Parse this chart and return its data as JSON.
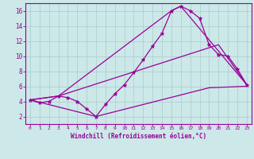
{
  "xlabel": "Windchill (Refroidissement éolien,°C)",
  "background_color": "#cce8e8",
  "grid_color": "#aacccc",
  "line_color": "#990099",
  "xlim": [
    -0.5,
    23.5
  ],
  "ylim": [
    1.0,
    17.0
  ],
  "yticks": [
    2,
    4,
    6,
    8,
    10,
    12,
    14,
    16
  ],
  "xticks": [
    0,
    1,
    2,
    3,
    4,
    5,
    6,
    7,
    8,
    9,
    10,
    11,
    12,
    13,
    14,
    15,
    16,
    17,
    18,
    19,
    20,
    21,
    22,
    23
  ],
  "line1_x": [
    0,
    1,
    2,
    3,
    4,
    5,
    6,
    7,
    8,
    9,
    10,
    11,
    12,
    13,
    14,
    15,
    16,
    17,
    18,
    19,
    20,
    21,
    22,
    23
  ],
  "line1_y": [
    4.2,
    3.8,
    4.0,
    4.7,
    4.5,
    4.0,
    3.0,
    2.0,
    3.6,
    5.0,
    6.2,
    7.8,
    9.5,
    11.3,
    13.0,
    16.0,
    16.6,
    16.0,
    15.0,
    11.5,
    10.2,
    10.0,
    8.3,
    6.2
  ],
  "line2_x": [
    0,
    3,
    15,
    16,
    23
  ],
  "line2_y": [
    4.2,
    4.7,
    16.0,
    16.6,
    6.2
  ],
  "line3_x": [
    0,
    3,
    20,
    23
  ],
  "line3_y": [
    4.2,
    4.7,
    11.5,
    6.2
  ],
  "line4_x": [
    0,
    7,
    19,
    23
  ],
  "line4_y": [
    4.2,
    2.0,
    5.8,
    6.0
  ]
}
